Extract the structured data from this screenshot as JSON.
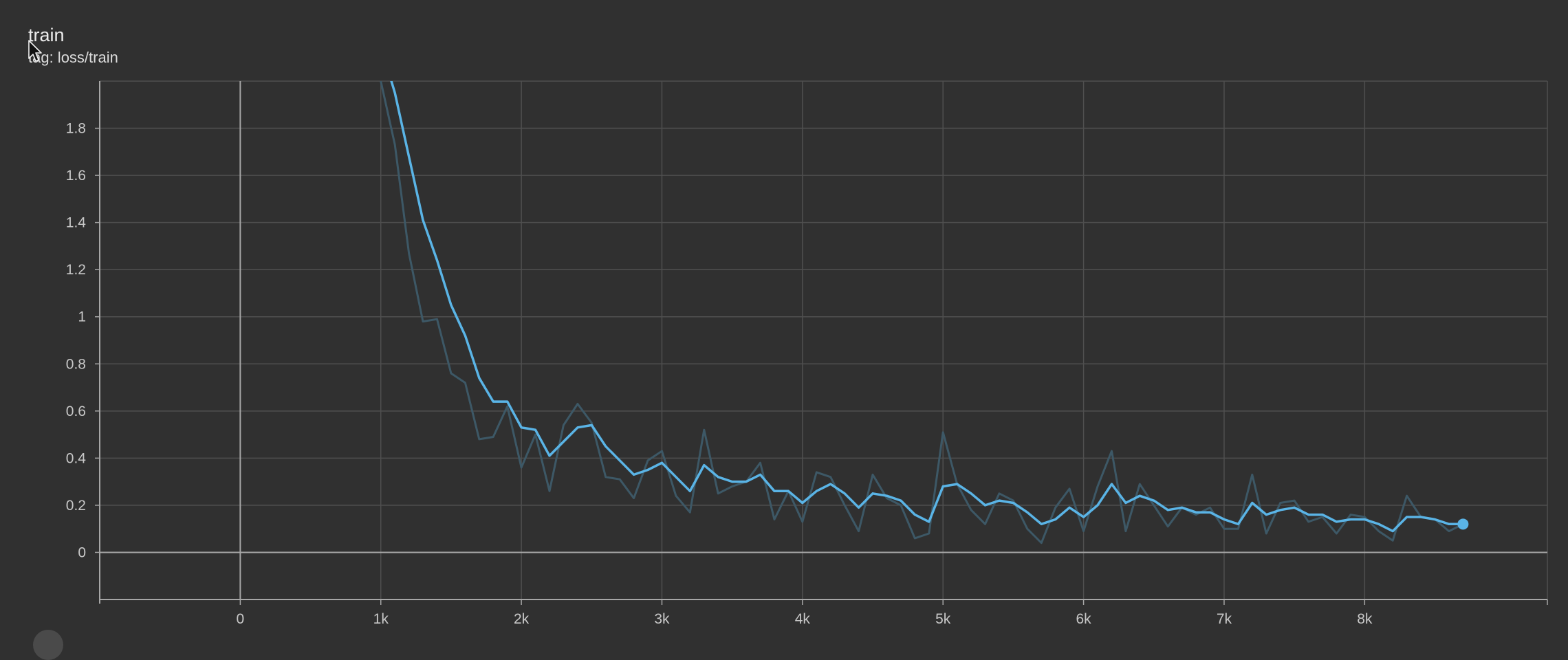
{
  "card": {
    "title": "train",
    "subtitle": "tag: loss/train"
  },
  "colors": {
    "background": "#303030",
    "smoothed_line": "#5ab4e6",
    "raw_line": "#3d5866",
    "grid": "#4f4f4f",
    "axis": "#a6a6a6"
  },
  "icons": {
    "cursor": "mouse-pointer-icon"
  },
  "chart_data": {
    "type": "line",
    "title": "train",
    "xlabel": "",
    "ylabel": "",
    "xlim": [
      -1000,
      9300
    ],
    "ylim": [
      -0.2,
      2.0
    ],
    "grid": true,
    "x_ticks": [
      0,
      1000,
      2000,
      3000,
      4000,
      5000,
      6000,
      7000,
      8000
    ],
    "x_tick_labels": [
      "0",
      "1k",
      "2k",
      "3k",
      "4k",
      "5k",
      "6k",
      "7k",
      "8k"
    ],
    "y_ticks": [
      0,
      0.2,
      0.4,
      0.6,
      0.8,
      1.0,
      1.2,
      1.4,
      1.6,
      1.8
    ],
    "y_tick_labels": [
      "0",
      "0.2",
      "0.4",
      "0.6",
      "0.8",
      "1",
      "1.2",
      "1.4",
      "1.6",
      "1.8"
    ],
    "x": [
      1000,
      1100,
      1200,
      1300,
      1400,
      1500,
      1600,
      1700,
      1800,
      1900,
      2000,
      2100,
      2200,
      2300,
      2400,
      2500,
      2600,
      2700,
      2800,
      2900,
      3000,
      3100,
      3200,
      3300,
      3400,
      3500,
      3600,
      3700,
      3800,
      3900,
      4000,
      4100,
      4200,
      4300,
      4400,
      4500,
      4600,
      4700,
      4800,
      4900,
      5000,
      5100,
      5200,
      5300,
      5400,
      5500,
      5600,
      5700,
      5800,
      5900,
      6000,
      6100,
      6200,
      6300,
      6400,
      6500,
      6600,
      6700,
      6800,
      6900,
      7000,
      7100,
      7200,
      7300,
      7400,
      7500,
      7600,
      7700,
      7800,
      7900,
      8000,
      8100,
      8200,
      8300,
      8400,
      8500,
      8600,
      8700
    ],
    "series": [
      {
        "role": "raw",
        "values": [
          2.0,
          1.73,
          1.27,
          0.98,
          0.99,
          0.76,
          0.72,
          0.48,
          0.49,
          0.62,
          0.36,
          0.5,
          0.26,
          0.54,
          0.63,
          0.55,
          0.32,
          0.31,
          0.23,
          0.39,
          0.43,
          0.24,
          0.17,
          0.52,
          0.25,
          0.28,
          0.3,
          0.38,
          0.14,
          0.26,
          0.13,
          0.34,
          0.32,
          0.2,
          0.09,
          0.33,
          0.23,
          0.2,
          0.06,
          0.08,
          0.51,
          0.29,
          0.18,
          0.12,
          0.25,
          0.22,
          0.1,
          0.04,
          0.19,
          0.27,
          0.09,
          0.28,
          0.43,
          0.09,
          0.29,
          0.2,
          0.11,
          0.19,
          0.16,
          0.19,
          0.1,
          0.1,
          0.33,
          0.08,
          0.21,
          0.22,
          0.13,
          0.15,
          0.08,
          0.16,
          0.15,
          0.09,
          0.05,
          0.24,
          0.15,
          0.14,
          0.09,
          0.12
        ]
      },
      {
        "role": "smoothed",
        "values": [
          2.15,
          1.95,
          1.68,
          1.41,
          1.24,
          1.05,
          0.92,
          0.74,
          0.64,
          0.64,
          0.53,
          0.52,
          0.41,
          0.47,
          0.53,
          0.54,
          0.45,
          0.39,
          0.33,
          0.35,
          0.38,
          0.32,
          0.26,
          0.37,
          0.32,
          0.3,
          0.3,
          0.33,
          0.26,
          0.26,
          0.21,
          0.26,
          0.29,
          0.25,
          0.19,
          0.25,
          0.24,
          0.22,
          0.16,
          0.13,
          0.28,
          0.29,
          0.25,
          0.2,
          0.22,
          0.21,
          0.17,
          0.12,
          0.14,
          0.19,
          0.15,
          0.2,
          0.29,
          0.21,
          0.24,
          0.22,
          0.18,
          0.19,
          0.17,
          0.17,
          0.14,
          0.12,
          0.21,
          0.16,
          0.18,
          0.19,
          0.16,
          0.16,
          0.13,
          0.14,
          0.14,
          0.12,
          0.09,
          0.15,
          0.15,
          0.14,
          0.12,
          0.12
        ]
      }
    ]
  }
}
